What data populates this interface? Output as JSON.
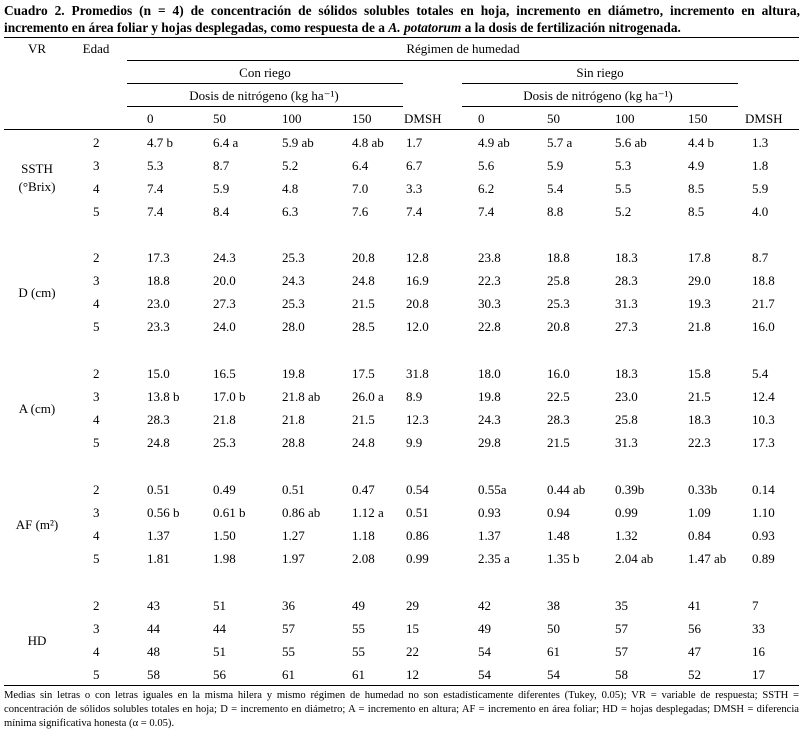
{
  "caption": {
    "label": "Cuadro 2.",
    "text_before": " Promedios (n = 4) de concentración de sólidos solubles totales en hoja, incremento en diámetro, incremento en altura, incremento en área foliar y hojas desplegadas, como respuesta de a ",
    "species": "A. potatorum",
    "text_after": " a la dosis de fertilización nitrogenada."
  },
  "headers": {
    "vr": "VR",
    "edad": "Edad",
    "regimen": "Régimen de humedad",
    "con_riego": "Con riego",
    "sin_riego": "Sin riego",
    "dosis": "Dosis de nitrógeno (kg ha⁻¹)",
    "doses": [
      "0",
      "50",
      "100",
      "150"
    ],
    "dmsh": "DMSH"
  },
  "variables": [
    {
      "label": [
        "SSTH",
        "(°Brix)"
      ],
      "rows": [
        {
          "edad": "2",
          "values": [
            "4.7 b",
            "6.4 a",
            "5.9 ab",
            "4.8 ab",
            "1.7",
            "4.9 ab",
            "5.7 a",
            "5.6 ab",
            "4.4 b",
            "1.3"
          ]
        },
        {
          "edad": "3",
          "values": [
            "5.3",
            "8.7",
            "5.2",
            "6.4",
            "6.7",
            "5.6",
            "5.9",
            "5.3",
            "4.9",
            "1.8"
          ]
        },
        {
          "edad": "4",
          "values": [
            "7.4",
            "5.9",
            "4.8",
            "7.0",
            "3.3",
            "6.2",
            "5.4",
            "5.5",
            "8.5",
            "5.9"
          ]
        },
        {
          "edad": "5",
          "values": [
            "7.4",
            "8.4",
            "6.3",
            "7.6",
            "7.4",
            "7.4",
            "8.8",
            "5.2",
            "8.5",
            "4.0"
          ]
        }
      ]
    },
    {
      "label": [
        "D (cm)"
      ],
      "rows": [
        {
          "edad": "2",
          "values": [
            "17.3",
            "24.3",
            "25.3",
            "20.8",
            "12.8",
            "23.8",
            "18.8",
            "18.3",
            "17.8",
            "8.7"
          ]
        },
        {
          "edad": "3",
          "values": [
            "18.8",
            "20.0",
            "24.3",
            "24.8",
            "16.9",
            "22.3",
            "25.8",
            "28.3",
            "29.0",
            "18.8"
          ]
        },
        {
          "edad": "4",
          "values": [
            "23.0",
            "27.3",
            "25.3",
            "21.5",
            "20.8",
            "30.3",
            "25.3",
            "31.3",
            "19.3",
            "21.7"
          ]
        },
        {
          "edad": "5",
          "values": [
            "23.3",
            "24.0",
            "28.0",
            "28.5",
            "12.0",
            "22.8",
            "20.8",
            "27.3",
            "21.8",
            "16.0"
          ]
        }
      ]
    },
    {
      "label": [
        "A (cm)"
      ],
      "rows": [
        {
          "edad": "2",
          "values": [
            "15.0",
            "16.5",
            "19.8",
            "17.5",
            "31.8",
            "18.0",
            "16.0",
            "18.3",
            "15.8",
            "5.4"
          ]
        },
        {
          "edad": "3",
          "values": [
            "13.8 b",
            "17.0 b",
            "21.8 ab",
            "26.0 a",
            "8.9",
            "19.8",
            "22.5",
            "23.0",
            "21.5",
            "12.4"
          ]
        },
        {
          "edad": "4",
          "values": [
            "28.3",
            "21.8",
            "21.8",
            "21.5",
            "12.3",
            "24.3",
            "28.3",
            "25.8",
            "18.3",
            "10.3"
          ]
        },
        {
          "edad": "5",
          "values": [
            "24.8",
            "25.3",
            "28.8",
            "24.8",
            "9.9",
            "29.8",
            "21.5",
            "31.3",
            "22.3",
            "17.3"
          ]
        }
      ]
    },
    {
      "label": [
        "AF (m²)"
      ],
      "rows": [
        {
          "edad": "2",
          "values": [
            "0.51",
            "0.49",
            "0.51",
            "0.47",
            "0.54",
            "0.55a",
            "0.44 ab",
            "0.39b",
            "0.33b",
            "0.14"
          ]
        },
        {
          "edad": "3",
          "values": [
            "0.56 b",
            "0.61 b",
            "0.86 ab",
            "1.12 a",
            "0.51",
            "0.93",
            "0.94",
            "0.99",
            "1.09",
            "1.10"
          ]
        },
        {
          "edad": "4",
          "values": [
            "1.37",
            "1.50",
            "1.27",
            "1.18",
            "0.86",
            "1.37",
            "1.48",
            "1.32",
            "0.84",
            "0.93"
          ]
        },
        {
          "edad": "5",
          "values": [
            "1.81",
            "1.98",
            "1.97",
            "2.08",
            "0.99",
            "2.35 a",
            "1.35 b",
            "2.04 ab",
            "1.47 ab",
            "0.89"
          ]
        }
      ]
    },
    {
      "label": [
        "HD"
      ],
      "rows": [
        {
          "edad": "2",
          "values": [
            "43",
            "51",
            "36",
            "49",
            "29",
            "42",
            "38",
            "35",
            "41",
            "7"
          ]
        },
        {
          "edad": "3",
          "values": [
            "44",
            "44",
            "57",
            "55",
            "15",
            "49",
            "50",
            "57",
            "56",
            "33"
          ]
        },
        {
          "edad": "4",
          "values": [
            "48",
            "51",
            "55",
            "55",
            "22",
            "54",
            "61",
            "57",
            "47",
            "16"
          ]
        },
        {
          "edad": "5",
          "values": [
            "58",
            "56",
            "61",
            "61",
            "12",
            "54",
            "54",
            "58",
            "52",
            "17"
          ]
        }
      ]
    }
  ],
  "footnote": "Medias sin letras o con letras iguales en la misma hilera y mismo régimen de humedad no son estadísticamente diferentes (Tukey, 0.05); VR = variable de respuesta; SSTH = concentración de sólidos solubles totales en hoja; D = incremento en diámetro; A = incremento en altura; AF = incremento en área foliar; HD = hojas desplegadas; DMSH = diferencia mínima significativa honesta (α = 0.05)."
}
